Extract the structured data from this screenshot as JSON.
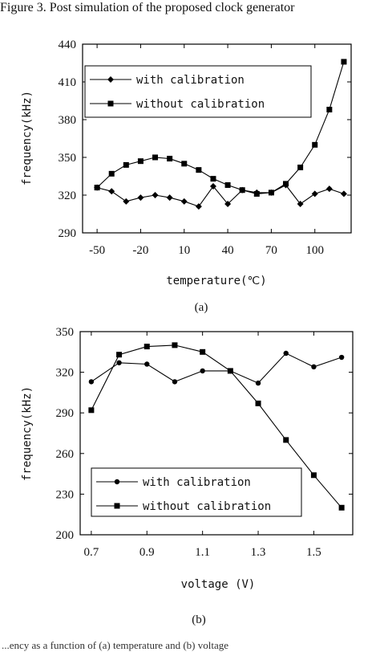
{
  "header": {
    "title": "Figure 3.   Post simulation of the proposed clock generator"
  },
  "footer": {
    "text": "...ency as a function of (a) temperature and (b) voltage"
  },
  "chart_data": [
    {
      "type": "line",
      "caption": "(a)",
      "xlabel": "temperature(℃)",
      "ylabel": "frequency(kHz)",
      "xlim": [
        -60,
        125
      ],
      "ylim": [
        290,
        440
      ],
      "x_ticks": [
        -50,
        -20,
        10,
        40,
        70,
        100
      ],
      "y_ticks": [
        290,
        320,
        350,
        380,
        410,
        440
      ],
      "legend_position": "top-left",
      "series": [
        {
          "name": "with calibration",
          "marker": "diamond",
          "x": [
            -50,
            -40,
            -30,
            -20,
            -10,
            0,
            10,
            20,
            30,
            40,
            50,
            60,
            70,
            80,
            90,
            100,
            110,
            120
          ],
          "y": [
            326,
            323,
            315,
            318,
            320,
            318,
            315,
            311,
            327,
            313,
            324,
            322,
            322,
            328,
            313,
            321,
            325,
            321
          ]
        },
        {
          "name": "without calibration",
          "marker": "square",
          "x": [
            -50,
            -40,
            -30,
            -20,
            -10,
            0,
            10,
            20,
            30,
            40,
            50,
            60,
            70,
            80,
            90,
            100,
            110,
            120
          ],
          "y": [
            326,
            337,
            344,
            347,
            350,
            349,
            345,
            340,
            333,
            328,
            324,
            321,
            322,
            329,
            342,
            360,
            388,
            426
          ]
        }
      ]
    },
    {
      "type": "line",
      "caption": "(b)",
      "xlabel": "voltage (V)",
      "ylabel": "frequency(kHz)",
      "xlim": [
        0.66,
        1.64
      ],
      "ylim": [
        200,
        350
      ],
      "x_ticks": [
        0.7,
        0.9,
        1.1,
        1.3,
        1.5
      ],
      "y_ticks": [
        200,
        230,
        260,
        290,
        320,
        350
      ],
      "legend_position": "bottom-left",
      "series": [
        {
          "name": "with calibration",
          "marker": "dot",
          "x": [
            0.7,
            0.8,
            0.9,
            1.0,
            1.1,
            1.2,
            1.3,
            1.4,
            1.5,
            1.6
          ],
          "y": [
            313,
            327,
            326,
            313,
            321,
            321,
            312,
            334,
            324,
            331
          ]
        },
        {
          "name": "without calibration",
          "marker": "square",
          "x": [
            0.7,
            0.8,
            0.9,
            1.0,
            1.1,
            1.2,
            1.3,
            1.4,
            1.5,
            1.6
          ],
          "y": [
            292,
            333,
            339,
            340,
            335,
            321,
            297,
            270,
            244,
            220
          ]
        }
      ]
    }
  ]
}
